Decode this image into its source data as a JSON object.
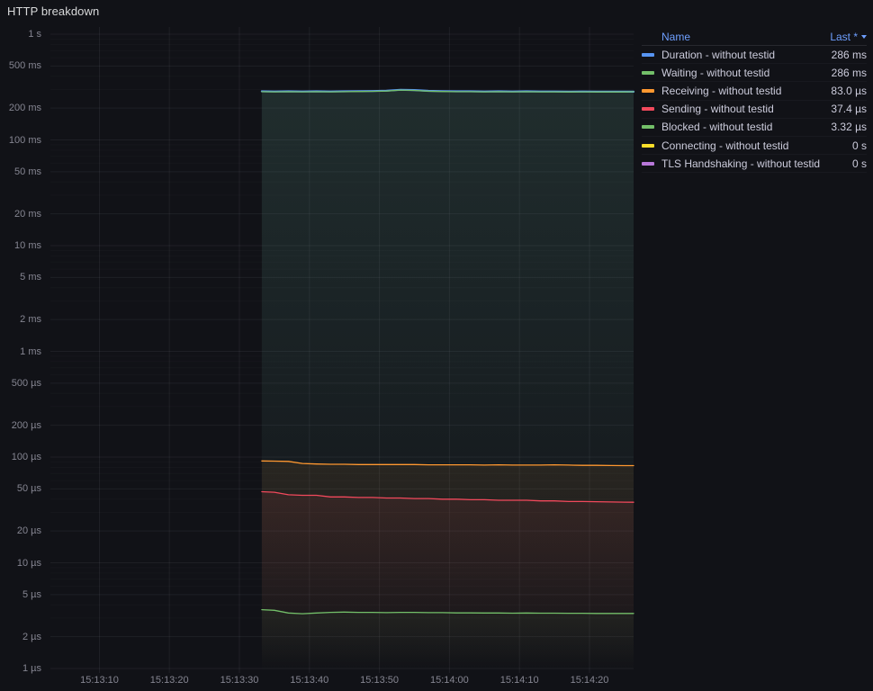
{
  "panel": {
    "title": "HTTP breakdown"
  },
  "legend": {
    "columns": {
      "name": "Name",
      "value": "Last *",
      "sort_icon": "caret-down",
      "sort_direction": "desc"
    },
    "rows": [
      {
        "name": "Duration - without testid",
        "value": "286 ms",
        "color": "#5794F2"
      },
      {
        "name": "Waiting - without testid",
        "value": "286 ms",
        "color": "#73BF69"
      },
      {
        "name": "Receiving - without testid",
        "value": "83.0 µs",
        "color": "#FF9830"
      },
      {
        "name": "Sending - without testid",
        "value": "37.4 µs",
        "color": "#F2495C"
      },
      {
        "name": "Blocked - without testid",
        "value": "3.32 µs",
        "color": "#73BF69"
      },
      {
        "name": "Connecting - without testid",
        "value": "0 s",
        "color": "#FADE2A"
      },
      {
        "name": "TLS Handshaking - without testid",
        "value": "0 s",
        "color": "#B877D9"
      }
    ]
  },
  "chart_data": {
    "type": "line",
    "title": "HTTP breakdown",
    "xlabel": "",
    "ylabel": "",
    "y_scale": "log",
    "ylim": [
      "1 µs",
      "1 s"
    ],
    "grid": true,
    "legend_position": "top-right",
    "xlim_seconds": [
      3,
      86.3
    ],
    "x_ticks": [
      {
        "t": 10,
        "label": "15:13:10"
      },
      {
        "t": 20,
        "label": "15:13:20"
      },
      {
        "t": 30,
        "label": "15:13:30"
      },
      {
        "t": 40,
        "label": "15:13:40"
      },
      {
        "t": 50,
        "label": "15:13:50"
      },
      {
        "t": 60,
        "label": "15:14:00"
      },
      {
        "t": 70,
        "label": "15:14:10"
      },
      {
        "t": 80,
        "label": "15:14:20"
      }
    ],
    "y_ticks": [
      {
        "v": 1,
        "label": "1 s"
      },
      {
        "v": 0.5,
        "label": "500 ms"
      },
      {
        "v": 0.2,
        "label": "200 ms"
      },
      {
        "v": 0.1,
        "label": "100 ms"
      },
      {
        "v": 0.05,
        "label": "50 ms"
      },
      {
        "v": 0.02,
        "label": "20 ms"
      },
      {
        "v": 0.01,
        "label": "10 ms"
      },
      {
        "v": 0.005,
        "label": "5 ms"
      },
      {
        "v": 0.002,
        "label": "2 ms"
      },
      {
        "v": 0.001,
        "label": "1 ms"
      },
      {
        "v": 0.0005,
        "label": "500 µs"
      },
      {
        "v": 0.0002,
        "label": "200 µs"
      },
      {
        "v": 0.0001,
        "label": "100 µs"
      },
      {
        "v": 5e-05,
        "label": "50 µs"
      },
      {
        "v": 2e-05,
        "label": "20 µs"
      },
      {
        "v": 1e-05,
        "label": "10 µs"
      },
      {
        "v": 5e-06,
        "label": "5 µs"
      },
      {
        "v": 2e-06,
        "label": "2 µs"
      },
      {
        "v": 1e-06,
        "label": "1 µs"
      }
    ],
    "t_seconds": [
      33.2,
      35,
      37,
      39,
      41,
      43,
      45,
      47,
      49,
      51,
      53,
      55,
      57,
      59,
      61,
      63,
      65,
      67,
      69,
      71,
      73,
      75,
      77,
      79,
      81,
      83,
      85,
      86.3
    ],
    "series": [
      {
        "name": "Duration - without testid",
        "color": "#5794F2",
        "unit": "ms",
        "values": [
          288,
          287,
          288,
          287,
          288,
          287,
          288,
          289,
          290,
          292,
          298,
          296,
          291,
          289,
          288,
          288,
          287,
          288,
          287,
          288,
          287,
          287,
          286,
          287,
          286,
          286,
          286,
          286
        ]
      },
      {
        "name": "Waiting - without testid",
        "color": "#73BF69",
        "unit": "ms",
        "values": [
          286,
          285,
          286,
          285,
          286,
          285,
          286,
          287,
          288,
          290,
          296,
          294,
          289,
          287,
          286,
          286,
          285,
          286,
          285,
          286,
          285,
          285,
          284,
          285,
          284,
          284,
          284,
          286
        ]
      },
      {
        "name": "Receiving - without testid",
        "color": "#FF9830",
        "unit": "µs",
        "values": [
          92,
          91.5,
          91,
          87,
          86,
          85.5,
          85.5,
          85,
          85,
          85,
          85,
          85,
          84.5,
          84.5,
          84.5,
          84.5,
          84,
          84.5,
          84,
          84,
          84,
          84.5,
          84,
          83.5,
          83.5,
          83.2,
          83,
          83
        ]
      },
      {
        "name": "Sending - without testid",
        "color": "#F2495C",
        "unit": "µs",
        "values": [
          47,
          46.5,
          44,
          43.5,
          43.5,
          42,
          42,
          41.5,
          41.5,
          41,
          41,
          40.5,
          40.5,
          40,
          40,
          39.5,
          39.5,
          39,
          39,
          39,
          38.5,
          38.5,
          38,
          38,
          37.8,
          37.6,
          37.5,
          37.4
        ]
      },
      {
        "name": "Blocked - without testid",
        "color": "#73BF69",
        "unit": "µs",
        "values": [
          3.6,
          3.55,
          3.35,
          3.3,
          3.35,
          3.4,
          3.42,
          3.4,
          3.4,
          3.38,
          3.4,
          3.4,
          3.38,
          3.38,
          3.36,
          3.36,
          3.35,
          3.35,
          3.34,
          3.35,
          3.34,
          3.34,
          3.33,
          3.33,
          3.32,
          3.32,
          3.32,
          3.32
        ]
      },
      {
        "name": "Connecting - without testid",
        "color": "#FADE2A",
        "unit": "s",
        "values": []
      },
      {
        "name": "TLS Handshaking - without testid",
        "color": "#B877D9",
        "unit": "s",
        "values": []
      }
    ]
  }
}
